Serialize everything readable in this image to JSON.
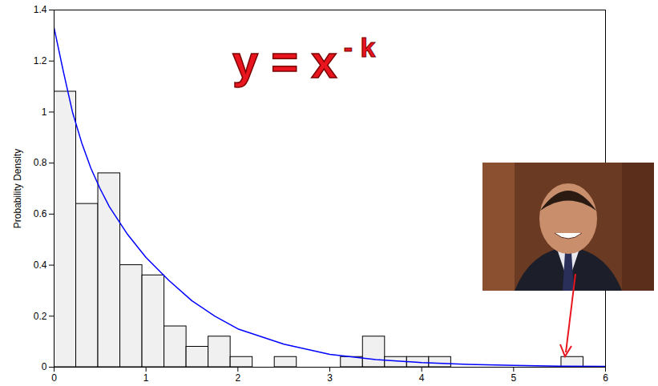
{
  "chart_data": {
    "type": "histogram",
    "bins": [
      0,
      0.24,
      0.48,
      0.72,
      0.96,
      1.2,
      1.44,
      1.68,
      1.92,
      2.16,
      2.4,
      2.64,
      2.88,
      3.12,
      3.36,
      3.6,
      3.84,
      4.08,
      4.32,
      4.56,
      4.8,
      5.04,
      5.28,
      5.52,
      5.76
    ],
    "values": [
      1.08,
      0.64,
      0.76,
      0.4,
      0.36,
      0.16,
      0.08,
      0.12,
      0.04,
      0,
      0.04,
      0,
      0,
      0.04,
      0.12,
      0.04,
      0.04,
      0.04,
      0,
      0,
      0,
      0,
      0,
      0.04
    ],
    "color": "#f0f0f0",
    "ylabel": "Probability Density",
    "xlim": [
      0,
      6
    ],
    "ylim": [
      0,
      1.4
    ],
    "xticks": [
      0,
      1,
      2,
      3,
      4,
      5,
      6
    ],
    "yticks": [
      0,
      0.2,
      0.4,
      0.6,
      0.8,
      1,
      1.2,
      1.4
    ],
    "curve": {
      "type": "line",
      "color": "#0000ff",
      "x": [
        0,
        0.1,
        0.2,
        0.3,
        0.4,
        0.5,
        0.6,
        0.8,
        1,
        1.25,
        1.5,
        1.75,
        2,
        2.5,
        3,
        3.5,
        4,
        4.5,
        5,
        5.5,
        6
      ],
      "values": [
        1.33,
        1.16,
        1.0,
        0.88,
        0.78,
        0.7,
        0.63,
        0.52,
        0.43,
        0.34,
        0.26,
        0.2,
        0.15,
        0.09,
        0.05,
        0.03,
        0.018,
        0.011,
        0.007,
        0.004,
        0.003
      ]
    },
    "annotation": {
      "text": "y = x",
      "superscript": "- k",
      "color": "#e8141e"
    }
  }
}
